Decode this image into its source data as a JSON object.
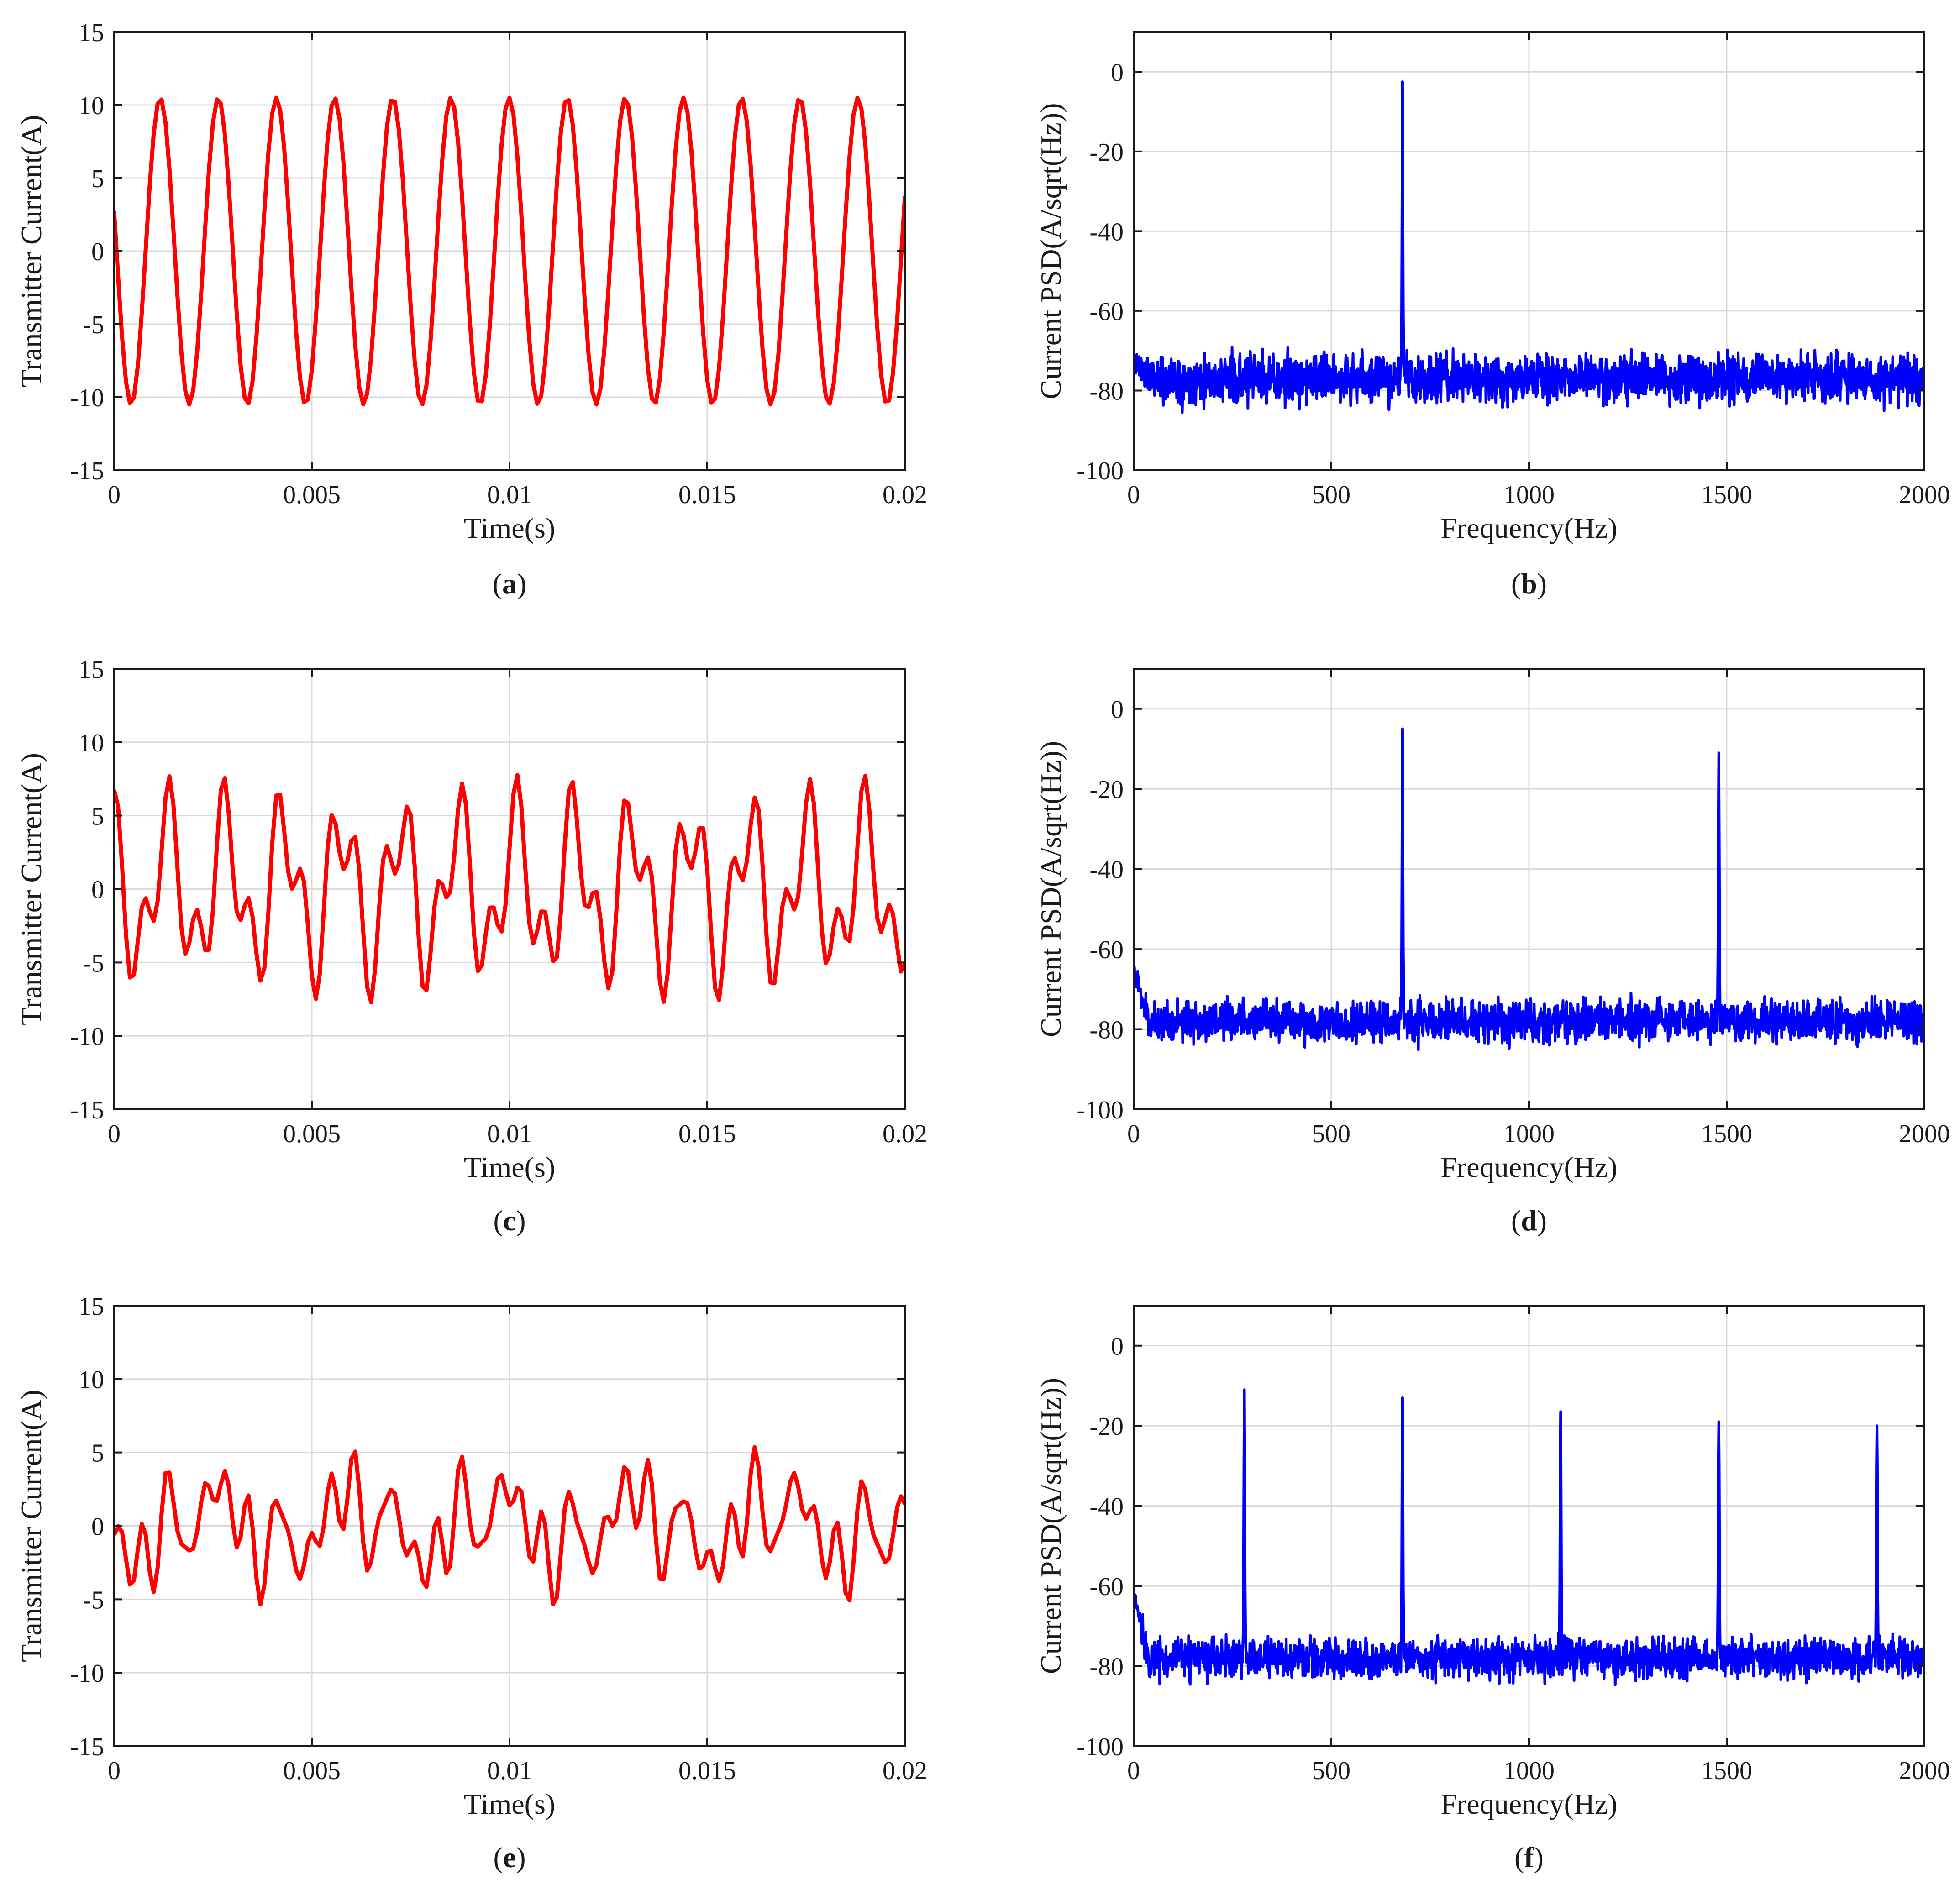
{
  "figure": {
    "panels": [
      {
        "id": "a",
        "label_letter": "a"
      },
      {
        "id": "b",
        "label_letter": "b"
      },
      {
        "id": "c",
        "label_letter": "c"
      },
      {
        "id": "d",
        "label_letter": "d"
      },
      {
        "id": "e",
        "label_letter": "e"
      },
      {
        "id": "f",
        "label_letter": "f"
      }
    ]
  },
  "colors": {
    "time_trace": "#ff0000",
    "psd_trace": "#0000ff",
    "grid": "#d9d9d9",
    "axes": "#1a1a1a"
  },
  "chart_data": [
    {
      "id": "a",
      "type": "line",
      "xlabel": "Time(s)",
      "ylabel": "Transmitter Current(A)",
      "xlim": [
        0,
        0.02
      ],
      "ylim": [
        -15,
        15
      ],
      "xticks": [
        0,
        0.005,
        0.01,
        0.015,
        0.02
      ],
      "xtick_labels": [
        "0",
        "0.005",
        "0.01",
        "0.015",
        "0.02"
      ],
      "yticks": [
        -15,
        -10,
        -5,
        0,
        5,
        10,
        15
      ],
      "ytick_labels": [
        "-15",
        "-10",
        "-5",
        "0",
        "5",
        "10",
        "15"
      ],
      "grid": true,
      "color": "#ff0000",
      "signal": {
        "kind": "sum_of_sines",
        "samples": 200,
        "components": [
          {
            "freq_hz": 680,
            "amp_A": 10.5,
            "phase_deg": 165
          }
        ]
      }
    },
    {
      "id": "b",
      "type": "line",
      "xlabel": "Frequency(Hz)",
      "ylabel": "Current PSD(A/sqrt(Hz))",
      "xlim": [
        0,
        2000
      ],
      "ylim": [
        -100,
        10
      ],
      "xticks": [
        0,
        500,
        1000,
        1500,
        2000
      ],
      "xtick_labels": [
        "0",
        "500",
        "1000",
        "1500",
        "2000"
      ],
      "yticks": [
        -100,
        -80,
        -60,
        -40,
        -20,
        0
      ],
      "ytick_labels": [
        "-100",
        "-80",
        "-60",
        "-40",
        "-20",
        "0"
      ],
      "grid": true,
      "color": "#0000ff",
      "noise_floor_dB": -77,
      "noise_spread_dB": 3,
      "seed": 11,
      "low_freq_start_dB": -72,
      "peaks": [
        {
          "freq_hz": 680,
          "level_dB": -2.5
        }
      ]
    },
    {
      "id": "c",
      "type": "line",
      "xlabel": "Time(s)",
      "ylabel": "Transmitter Current(A)",
      "xlim": [
        0,
        0.02
      ],
      "ylim": [
        -15,
        15
      ],
      "xticks": [
        0,
        0.005,
        0.01,
        0.015,
        0.02
      ],
      "xtick_labels": [
        "0",
        "0.005",
        "0.01",
        "0.015",
        "0.02"
      ],
      "yticks": [
        -15,
        -10,
        -5,
        0,
        5,
        10,
        15
      ],
      "ytick_labels": [
        "-15",
        "-10",
        "-5",
        "0",
        "5",
        "10",
        "15"
      ],
      "grid": true,
      "color": "#ff0000",
      "signal": {
        "kind": "sum_of_sines",
        "samples": 200,
        "components": [
          {
            "freq_hz": 680,
            "amp_A": 4.6,
            "phase_deg": 120
          },
          {
            "freq_hz": 1480,
            "amp_A": 3.2,
            "phase_deg": 60
          }
        ]
      }
    },
    {
      "id": "d",
      "type": "line",
      "xlabel": "Frequency(Hz)",
      "ylabel": "Current PSD(A/sqrt(Hz))",
      "xlim": [
        0,
        2000
      ],
      "ylim": [
        -100,
        10
      ],
      "xticks": [
        0,
        500,
        1000,
        1500,
        2000
      ],
      "xtick_labels": [
        "0",
        "500",
        "1000",
        "1500",
        "2000"
      ],
      "yticks": [
        -100,
        -80,
        -60,
        -40,
        -20,
        0
      ],
      "ytick_labels": [
        "-100",
        "-80",
        "-60",
        "-40",
        "-20",
        "0"
      ],
      "grid": true,
      "color": "#0000ff",
      "noise_floor_dB": -78,
      "noise_spread_dB": 2.5,
      "seed": 23,
      "low_freq_start_dB": -66,
      "peaks": [
        {
          "freq_hz": 680,
          "level_dB": -5
        },
        {
          "freq_hz": 1480,
          "level_dB": -11
        }
      ]
    },
    {
      "id": "e",
      "type": "line",
      "xlabel": "Time(s)",
      "ylabel": "Transmitter Current(A)",
      "xlim": [
        0,
        0.02
      ],
      "ylim": [
        -15,
        15
      ],
      "xticks": [
        0,
        0.005,
        0.01,
        0.015,
        0.02
      ],
      "xtick_labels": [
        "0",
        "0.005",
        "0.01",
        "0.015",
        "0.02"
      ],
      "yticks": [
        -15,
        -10,
        -5,
        0,
        5,
        10,
        15
      ],
      "ytick_labels": [
        "-15",
        "-10",
        "-5",
        "0",
        "5",
        "10",
        "15"
      ],
      "grid": true,
      "color": "#ff0000",
      "signal": {
        "kind": "sum_of_sines",
        "samples": 200,
        "components": [
          {
            "freq_hz": 280,
            "amp_A": 1.6,
            "phase_deg": 200
          },
          {
            "freq_hz": 680,
            "amp_A": 1.6,
            "phase_deg": 140
          },
          {
            "freq_hz": 1080,
            "amp_A": 1.4,
            "phase_deg": 250
          },
          {
            "freq_hz": 1480,
            "amp_A": 1.4,
            "phase_deg": 60
          },
          {
            "freq_hz": 1880,
            "amp_A": 1.3,
            "phase_deg": 310
          }
        ]
      }
    },
    {
      "id": "f",
      "type": "line",
      "xlabel": "Frequency(Hz)",
      "ylabel": "Current PSD(A/sqrt(Hz))",
      "xlim": [
        0,
        2000
      ],
      "ylim": [
        -100,
        10
      ],
      "xticks": [
        0,
        500,
        1000,
        1500,
        2000
      ],
      "xtick_labels": [
        "0",
        "500",
        "1000",
        "1500",
        "2000"
      ],
      "yticks": [
        -100,
        -80,
        -60,
        -40,
        -20,
        0
      ],
      "ytick_labels": [
        "-100",
        "-80",
        "-60",
        "-40",
        "-20",
        "0"
      ],
      "grid": true,
      "color": "#0000ff",
      "noise_floor_dB": -78,
      "noise_spread_dB": 2.5,
      "seed": 37,
      "low_freq_start_dB": -62,
      "peaks": [
        {
          "freq_hz": 280,
          "level_dB": -11
        },
        {
          "freq_hz": 680,
          "level_dB": -13
        },
        {
          "freq_hz": 1080,
          "level_dB": -16.5
        },
        {
          "freq_hz": 1480,
          "level_dB": -19
        },
        {
          "freq_hz": 1880,
          "level_dB": -20
        }
      ]
    }
  ]
}
